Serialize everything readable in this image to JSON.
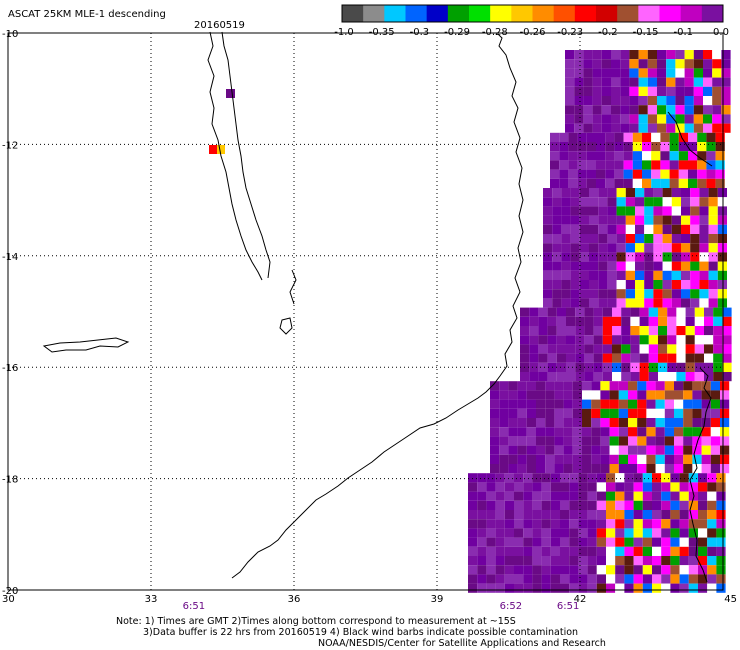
{
  "header": {
    "title": "ASCAT 25KM MLE-1 descending",
    "date": "20160519"
  },
  "colorbar": {
    "colors": [
      "#4a4a4a",
      "#8c8c8c",
      "#00c8ff",
      "#0064ff",
      "#0000c8",
      "#00a000",
      "#00e000",
      "#ffff00",
      "#ffc800",
      "#ff8c00",
      "#ff5000",
      "#ff0000",
      "#d20000",
      "#a05030",
      "#ff64ff",
      "#ff00ff",
      "#c000c0",
      "#7a10a0"
    ],
    "labels": [
      "-1.0",
      "-0.35",
      "-0.3",
      "-0.29",
      "-0.28",
      "-0.26",
      "-0.23",
      "-0.2",
      "-0.15",
      "-0.1",
      "0.0"
    ]
  },
  "axes": {
    "lat_labels": [
      "-10",
      "-12",
      "-14",
      "-16",
      "-18",
      "-20"
    ],
    "lon_labels": [
      "30",
      "33",
      "36",
      "39",
      "42",
      "45"
    ]
  },
  "time_labels": [
    {
      "text": "6:51",
      "lon": 33.9
    },
    {
      "text": "6:52",
      "lon": 40.55
    },
    {
      "text": "6:51",
      "lon": 41.75
    }
  ],
  "notes": [
    "Note: 1) Times are GMT 2)Times along bottom correspond to measurement at ~15S",
    "3)Data buffer is 22 hrs from 20160519 4) Black wind barbs indicate possible contamination",
    "NOAA/NESDIS/Center for Satellite Applications and Research"
  ]
}
